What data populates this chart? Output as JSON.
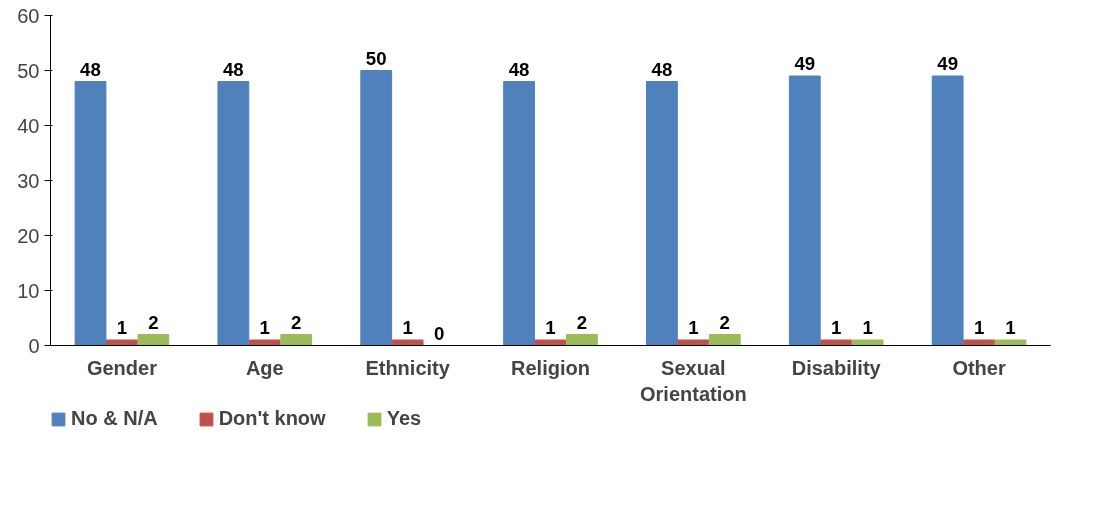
{
  "chart_data": {
    "type": "bar",
    "categories": [
      "Gender",
      "Age",
      "Ethnicity",
      "Religion",
      "Sexual Orientation",
      "Disability",
      "Other"
    ],
    "series": [
      {
        "name": "No & N/A",
        "color": "#4f81bd",
        "values": [
          48,
          48,
          50,
          48,
          48,
          49,
          49
        ]
      },
      {
        "name": "Don't know",
        "color": "#c0504d",
        "values": [
          1,
          1,
          1,
          1,
          1,
          1,
          1
        ]
      },
      {
        "name": "Yes",
        "color": "#9bbb59",
        "values": [
          2,
          2,
          0,
          2,
          2,
          1,
          1
        ]
      }
    ],
    "ylim": [
      0,
      60
    ],
    "yticks": [
      0,
      10,
      20,
      30,
      40,
      50,
      60
    ],
    "grid": false,
    "legend": "bottom",
    "data_labels": true
  }
}
